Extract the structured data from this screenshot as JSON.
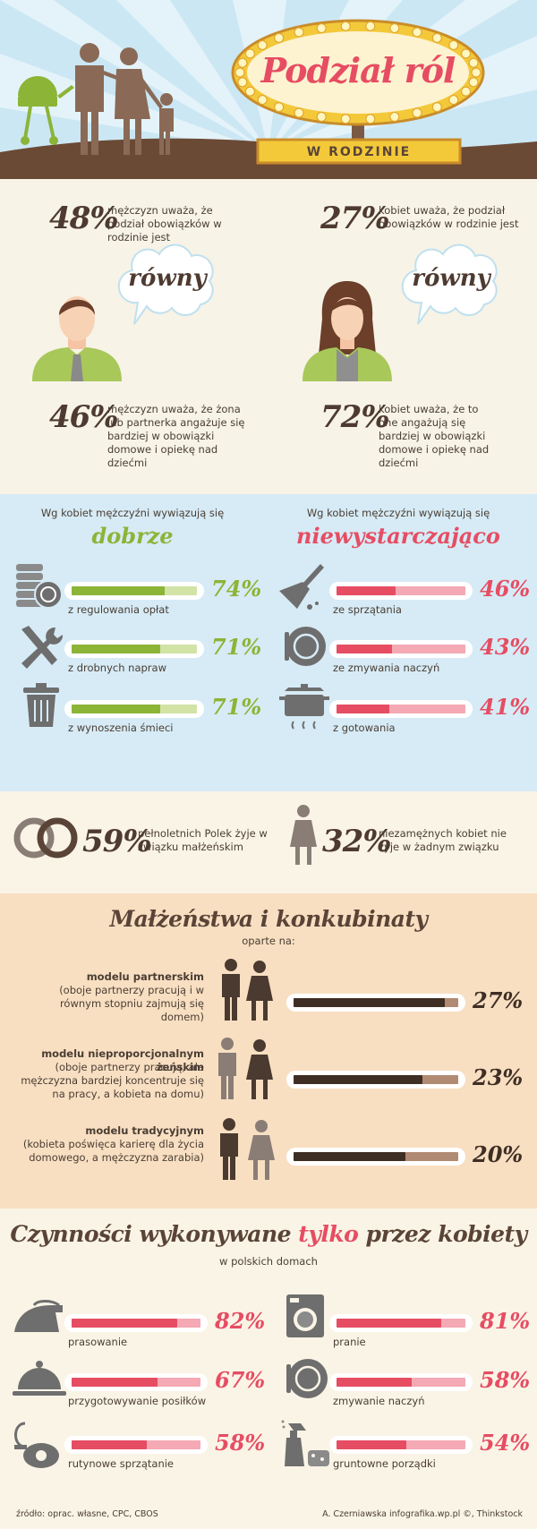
{
  "header": {
    "title": "Podział ról",
    "subtitle": "W RODZINIE",
    "colors": {
      "sky": "#c9e6f3",
      "ray": "#ffffff",
      "ground": "#6b4a35",
      "sign": "#e64d63",
      "bulb": "#f3d23a",
      "banner": "#f3c93a"
    }
  },
  "equality": {
    "men_equal": {
      "pct": "48%",
      "text": "mężczyzn uważa, że podział obowiązków w rodzinie jest"
    },
    "women_equal": {
      "pct": "27%",
      "text": "kobiet uważa, że podział obowiązków w rodzinie jest"
    },
    "bubble_word": "równy",
    "men_partner": {
      "pct": "46%",
      "text": "mężczyzn uważa, że żona lub partnerka angażuje się bardziej w obowiązki domowe i opiekę nad dziećmi"
    },
    "women_self": {
      "pct": "72%",
      "text": "kobiet uważa, że to one angażują się bardziej w obowiązki domowe i opiekę nad dziećmi"
    }
  },
  "performance": {
    "left_intro": "Wg kobiet mężczyźni wywiązują się",
    "left_word": "dobrze",
    "right_intro": "Wg kobiet mężczyźni wywiązują się",
    "right_word": "niewystarczająco",
    "good": [
      {
        "icon": "coins-icon",
        "label": "z regulowania opłat",
        "pct": "74%",
        "value": 74
      },
      {
        "icon": "tools-icon",
        "label": "z drobnych napraw",
        "pct": "71%",
        "value": 71
      },
      {
        "icon": "trash-can-icon",
        "label": "z wynoszenia śmieci",
        "pct": "71%",
        "value": 71
      }
    ],
    "bad": [
      {
        "icon": "broom-icon",
        "label": "ze sprzątania",
        "pct": "46%",
        "value": 46
      },
      {
        "icon": "plate-icon",
        "label": "ze zmywania naczyń",
        "pct": "43%",
        "value": 43
      },
      {
        "icon": "pot-icon",
        "label": "z gotowania",
        "pct": "41%",
        "value": 41
      }
    ],
    "colors": {
      "good": "#8cb437",
      "good_light": "#d2e3a6",
      "bad": "#e64d63",
      "bad_light": "#f4a9b4"
    }
  },
  "marriage": {
    "married": {
      "pct": "59%",
      "text": "pełnoletnich Polek żyje w związku małżeńskim"
    },
    "single": {
      "pct": "32%",
      "text": "niezamężnych kobiet nie żyje w żadnym związku"
    }
  },
  "models": {
    "title": "Małżeństwa i konkubinaty",
    "subtitle": "oparte na:",
    "items": [
      {
        "name": "modelu partnerskim",
        "desc": "(oboje partnerzy pracują i w równym stopniu zajmują się domem)",
        "pct": "27%",
        "value": 27
      },
      {
        "name": "modelu nieproporcjonalnym żeńskim",
        "desc": "(oboje partnerzy pracują, ale mężczyzna bardziej koncentruje się na pracy, a kobieta na domu)",
        "pct": "23%",
        "value": 23
      },
      {
        "name": "modelu tradycyjnym",
        "desc": "(kobieta poświęca karierę dla życia domowego, a mężczyzna zarabia)",
        "pct": "20%",
        "value": 20
      }
    ],
    "colors": {
      "bar": "#3f2e24",
      "bar_light": "#b08a72"
    }
  },
  "women_only": {
    "title_pre": "Czynności wykonywane ",
    "title_mid": "tylko",
    "title_post": " przez kobiety",
    "subtitle": "w polskich domach",
    "items": [
      {
        "icon": "iron-icon",
        "label": "prasowanie",
        "pct": "82%",
        "value": 82
      },
      {
        "icon": "washing-machine-icon",
        "label": "pranie",
        "pct": "81%",
        "value": 81
      },
      {
        "icon": "cloche-icon",
        "label": "przygotowywanie posiłków",
        "pct": "67%",
        "value": 67
      },
      {
        "icon": "plate-icon",
        "label": "zmywanie naczyń",
        "pct": "58%",
        "value": 58
      },
      {
        "icon": "vacuum-icon",
        "label": "rutynowe sprzątanie",
        "pct": "58%",
        "value": 58
      },
      {
        "icon": "spray-sponge-icon",
        "label": "gruntowne porządki",
        "pct": "54%",
        "value": 54
      }
    ]
  },
  "footer": {
    "source": "źródło: oprac. własne, CPC, CBOS",
    "credit": "A. Czerniawska infografika.wp.pl ©, Thinkstock"
  }
}
